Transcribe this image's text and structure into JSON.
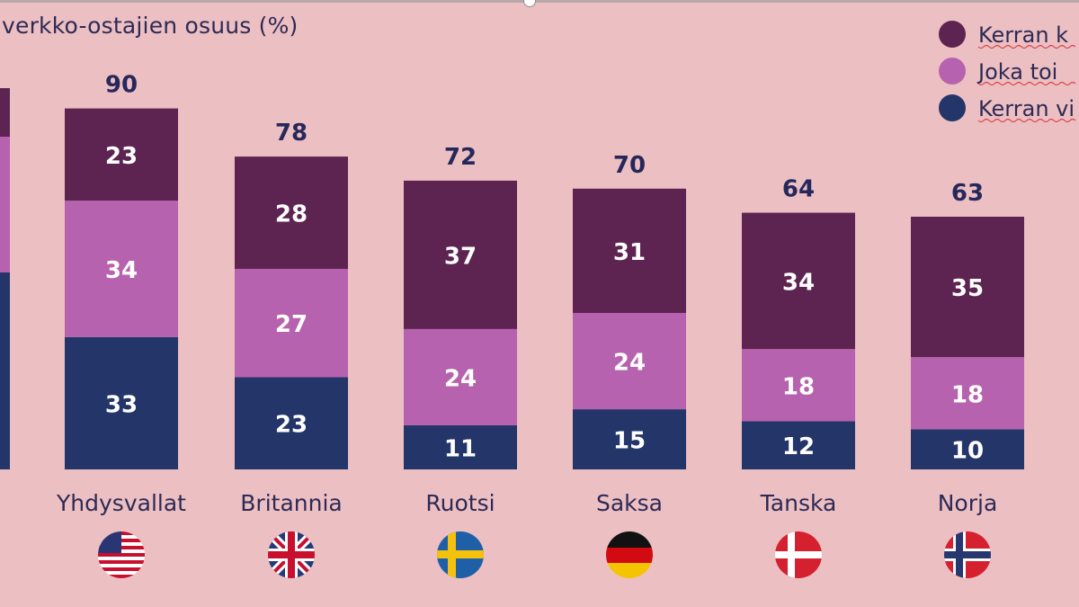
{
  "chart_data": {
    "type": "bar",
    "stacked": true,
    "title": "verkko-ostajien osuus (%)",
    "categories": [
      "Yhdysvallat",
      "Britannia",
      "Ruotsi",
      "Saksa",
      "Tanska",
      "Norja"
    ],
    "series": [
      {
        "name": "Kerran vi",
        "color": "#233569",
        "values": [
          33,
          23,
          11,
          15,
          12,
          10
        ]
      },
      {
        "name": "Joka toi",
        "color": "#b762ae",
        "values": [
          34,
          27,
          24,
          24,
          18,
          18
        ]
      },
      {
        "name": "Kerran k",
        "color": "#5d2451",
        "values": [
          23,
          28,
          37,
          31,
          34,
          35
        ]
      }
    ],
    "totals": [
      90,
      78,
      72,
      70,
      64,
      63
    ],
    "legend_order": [
      "Kerran k",
      "Joka toi",
      "Kerran vi"
    ],
    "legend_position": "top-right",
    "partial_left_bar": {
      "series_colors": [
        "#233569",
        "#b762ae",
        "#5d2451"
      ]
    },
    "flags": [
      "us-flag-icon",
      "uk-flag-icon",
      "sweden-flag-icon",
      "germany-flag-icon",
      "denmark-flag-icon",
      "norway-flag-icon"
    ],
    "ylim": [
      0,
      100
    ]
  }
}
